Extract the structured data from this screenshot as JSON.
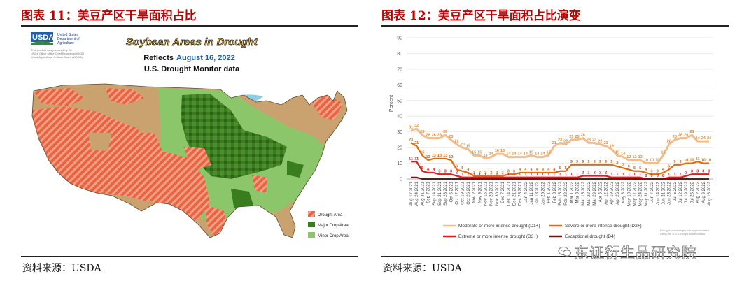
{
  "left": {
    "title": "图表 11：美豆产区干旱面积占比",
    "source": "资料来源：USDA",
    "map": {
      "agency_logo": "USDA",
      "agency_lines": [
        "United States",
        "Department of",
        "Agriculture"
      ],
      "fine_print": [
        "This product was prepared by the",
        "USDA Office of the Chief Economist (OCE)",
        "World Agricultural Outlook Board (WAOB)"
      ],
      "headline": "Soybean Areas in Drought",
      "reflects_label": "Reflects",
      "date": "August 16, 2022",
      "data_source": "U.S. Drought Monitor data",
      "legend": [
        {
          "label": "Drought Area",
          "color": "#e9634a"
        },
        {
          "label": "Major Crop Area",
          "color": "#3a7d1e"
        },
        {
          "label": "Minor Crop Area",
          "color": "#8cc66a"
        }
      ]
    }
  },
  "right": {
    "title": "图表 12：美豆产区干旱面积占比演变",
    "source": "资料来源：USDA",
    "note": [
      "Drought percentages are approximated",
      "using the U.S. Drought Monitor data"
    ]
  },
  "watermark": "东证衍生品研究院",
  "chart_data": {
    "type": "line",
    "ylabel": "Percent",
    "ylim": [
      0,
      90
    ],
    "yticks": [
      0,
      10,
      20,
      30,
      40,
      50,
      60,
      70,
      80,
      90
    ],
    "grid": true,
    "legend_position": "bottom",
    "x": [
      "Aug 17 2021",
      "Aug 24 2021",
      "Aug 31 2021",
      "Sep 7 2021",
      "Sep 14 2021",
      "Sep 21 2021",
      "Sep 28 2021",
      "Oct 5 2021",
      "Oct 12 2021",
      "Oct 19 2021",
      "Oct 26 2021",
      "Nov 2 2021",
      "Nov 9 2021",
      "Nov 16 2021",
      "Nov 23 2021",
      "Nov 30 2021",
      "Dec 7 2021",
      "Dec 14 2021",
      "Dec 21 2021",
      "Dec 28 2021",
      "Jan 4 2022",
      "Jan 11 2022",
      "Jan 18 2022",
      "Jan 25 2022",
      "Feb 1 2022",
      "Feb 8 2022",
      "Feb 15 2022",
      "Feb 22 2022",
      "Mar 1 2022",
      "Mar 8 2022",
      "Mar 15 2022",
      "Mar 22 2022",
      "Mar 29 2022",
      "Apr 5 2022",
      "Apr 12 2022",
      "Apr 19 2022",
      "Apr 26 2022",
      "May 3 2022",
      "May 10 2022",
      "May 17 2022",
      "May 24 2022",
      "May 31 2022",
      "Jun 7 2022",
      "Jun 14 2022",
      "Jun 21 2022",
      "Jun 28 2022",
      "Jul 5 2022",
      "Jul 12 2022",
      "Jul 19 2022",
      "Jul 26 2022",
      "Aug 2 2022",
      "Aug 9 2022",
      "Aug 16 2022"
    ],
    "xticks": [
      "Aug 17 2021",
      "Aug 24 2021",
      "Aug 31 2021",
      "Sep 7 2021",
      "Sep 14 2021",
      "Sep 21 2021",
      "Sep 28 2021",
      "Oct 5 2021",
      "Oct 12 2021",
      "Oct 19 2021",
      "Oct 26 2021",
      "Nov 2 2021",
      "Nov 9 2021",
      "Nov 16 2021",
      "Nov 23 2021",
      "Nov 30 2021",
      "Dec 7 2021",
      "Dec 14 2021",
      "Dec 21 2021",
      "Dec 28 2021",
      "Jan 4 2022",
      "Jan 11 2022",
      "Jan 18 2022",
      "Jan 25 2022",
      "Feb 1 2022",
      "Feb 8 2022",
      "Feb 15 2022",
      "Feb 22 2022",
      "Mar 1 2022",
      "Mar 8 2022",
      "Mar 15 2022",
      "Mar 22 2022",
      "Mar 29 2022",
      "Apr 5 2022",
      "Apr 12 2022",
      "Apr 19 2022",
      "Apr 26 2022",
      "May 3 2022",
      "May 10 2022",
      "May 17 2022",
      "May 24 2022",
      "May 31 2022",
      "Jun 7 2022",
      "Jun 14 2022",
      "Jun 21 2022",
      "Jun 28 2022",
      "Jul 5 2022",
      "Jul 12 2022",
      "Jul 19 2022",
      "Jul 26 2022",
      "Aug 2 2022",
      "Aug 9 2022",
      "Aug 16 2022"
    ],
    "series": [
      {
        "name": "Moderate or more intense drought (D1+)",
        "color": "#f2bc8c",
        "values": [
          31,
          32,
          28,
          26,
          26,
          26,
          28,
          25,
          22,
          20,
          19,
          15,
          15,
          13,
          14,
          16,
          16,
          14,
          14,
          14,
          14,
          15,
          14,
          14,
          15,
          21,
          23,
          22,
          25,
          25,
          26,
          23,
          23,
          22,
          21,
          19,
          15,
          14,
          12,
          12,
          12,
          10,
          10,
          10,
          15,
          22,
          25,
          26,
          26,
          28,
          24,
          24,
          24
        ]
      },
      {
        "name": "Severe or more intense drought (D2+)",
        "color": "#e06c10",
        "values": [
          23,
          21,
          15,
          12,
          13,
          13,
          13,
          12,
          6,
          5,
          4,
          2,
          2,
          2,
          2,
          2,
          2,
          3,
          3,
          4,
          4,
          4,
          4,
          4,
          4,
          4,
          5,
          5,
          9,
          9,
          9,
          9,
          9,
          9,
          9,
          9,
          8,
          7,
          6,
          5,
          5,
          4,
          3,
          3,
          4,
          6,
          9,
          9,
          10,
          10,
          11,
          10,
          10
        ]
      },
      {
        "name": "Extreme or more intense drought (D3+)",
        "color": "#e21b1b",
        "values": [
          11,
          11,
          5,
          4,
          4,
          3,
          3,
          3,
          2,
          1,
          1,
          1,
          1,
          1,
          1,
          1,
          1,
          1,
          1,
          1,
          1,
          1,
          1,
          1,
          1,
          1,
          1,
          1,
          1,
          1,
          2,
          2,
          2,
          2,
          2,
          1,
          1,
          1,
          1,
          1,
          1,
          0,
          0,
          0,
          0,
          1,
          1,
          1,
          2,
          3,
          3,
          3,
          3
        ]
      },
      {
        "name": "Exceptional drought (D4)",
        "color": "#6b1515",
        "values": [
          1,
          1,
          0,
          0,
          0,
          0,
          0,
          0,
          0,
          0,
          0,
          0,
          0,
          0,
          0,
          0,
          0,
          0,
          0,
          0,
          0,
          0,
          0,
          0,
          0,
          0,
          0,
          0,
          0,
          0,
          0,
          0,
          0,
          0,
          0,
          0,
          0,
          0,
          0,
          0,
          0,
          0,
          0,
          0,
          0,
          0,
          0,
          0,
          0,
          0,
          0,
          0,
          0
        ]
      }
    ]
  }
}
